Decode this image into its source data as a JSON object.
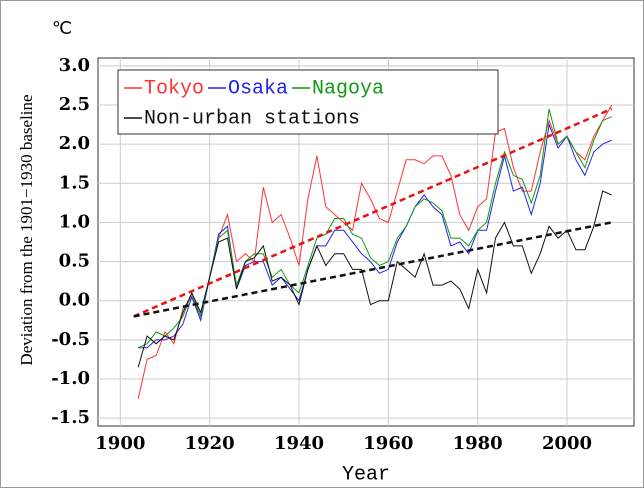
{
  "chart_data": {
    "type": "line",
    "unit_label": "℃",
    "y_label": "Deviation from the 1901−1930 baseline",
    "x_label": "Year",
    "xlim": [
      1895,
      2015
    ],
    "xticks": [
      1900,
      1920,
      1940,
      1960,
      1980,
      2000
    ],
    "ylim": [
      -1.6,
      3.1
    ],
    "yticks": [
      {
        "value": 3,
        "label": "3.0"
      },
      {
        "value": 2.5,
        "label": "2.5"
      },
      {
        "value": 2,
        "label": "2.0"
      },
      {
        "value": 1.5,
        "label": "1.5"
      },
      {
        "value": 1,
        "label": "1.0"
      },
      {
        "value": 0.5,
        "label": "0.5"
      },
      {
        "value": 0,
        "label": "0.0"
      },
      {
        "value": -0.5,
        "label": "-0.5"
      },
      {
        "value": -1,
        "label": "-1.0"
      },
      {
        "value": -1.5,
        "label": "-1.5"
      }
    ],
    "grid": true,
    "x": [
      1904,
      1906,
      1908,
      1910,
      1912,
      1914,
      1916,
      1918,
      1920,
      1922,
      1924,
      1926,
      1928,
      1930,
      1932,
      1934,
      1936,
      1938,
      1940,
      1942,
      1944,
      1946,
      1948,
      1950,
      1952,
      1954,
      1956,
      1958,
      1960,
      1962,
      1964,
      1966,
      1968,
      1970,
      1972,
      1974,
      1976,
      1978,
      1980,
      1982,
      1984,
      1986,
      1988,
      1990,
      1992,
      1994,
      1996,
      1998,
      2000,
      2002,
      2004,
      2006,
      2008,
      2010
    ],
    "series": [
      {
        "name": "Tokyo",
        "color": "#ff3333",
        "values": [
          -1.25,
          -0.75,
          -0.7,
          -0.4,
          -0.55,
          -0.1,
          0.05,
          -0.2,
          0.3,
          0.8,
          1.1,
          0.5,
          0.6,
          0.5,
          1.45,
          1.0,
          1.1,
          0.8,
          0.45,
          1.3,
          1.85,
          1.2,
          1.1,
          1.0,
          0.9,
          1.5,
          1.3,
          1.05,
          1.0,
          1.4,
          1.8,
          1.8,
          1.75,
          1.85,
          1.85,
          1.6,
          1.1,
          0.9,
          1.2,
          1.3,
          2.15,
          2.2,
          1.7,
          1.4,
          1.4,
          1.9,
          2.3,
          2.0,
          2.1,
          1.9,
          1.8,
          2.1,
          2.3,
          2.5
        ]
      },
      {
        "name": "Osaka",
        "color": "#2222ee",
        "values": [
          -0.6,
          -0.6,
          -0.5,
          -0.5,
          -0.45,
          -0.3,
          0.05,
          -0.25,
          0.3,
          0.85,
          0.95,
          0.15,
          0.45,
          0.5,
          0.5,
          0.2,
          0.3,
          0.15,
          0.0,
          0.4,
          0.7,
          0.7,
          0.9,
          0.9,
          0.75,
          0.6,
          0.5,
          0.35,
          0.4,
          0.75,
          0.95,
          1.2,
          1.35,
          1.2,
          1.1,
          0.7,
          0.75,
          0.6,
          0.9,
          0.9,
          1.4,
          1.85,
          1.4,
          1.45,
          1.1,
          1.5,
          2.25,
          1.95,
          2.1,
          1.8,
          1.6,
          1.9,
          2.0,
          2.05
        ]
      },
      {
        "name": "Nagoya",
        "color": "#119911",
        "values": [
          -0.6,
          -0.55,
          -0.4,
          -0.45,
          -0.35,
          -0.2,
          0.1,
          -0.2,
          0.3,
          0.8,
          0.9,
          0.2,
          0.5,
          0.6,
          0.6,
          0.3,
          0.4,
          0.2,
          0.1,
          0.45,
          0.8,
          0.85,
          1.05,
          1.05,
          0.85,
          0.8,
          0.55,
          0.45,
          0.5,
          0.8,
          0.95,
          1.2,
          1.3,
          1.25,
          1.15,
          0.8,
          0.8,
          0.7,
          0.9,
          1.0,
          1.5,
          1.9,
          1.6,
          1.55,
          1.25,
          1.6,
          2.45,
          2.0,
          2.1,
          1.9,
          1.7,
          2.05,
          2.3,
          2.35
        ]
      },
      {
        "name": "Non-urban stations",
        "color": "#111111",
        "values": [
          -0.85,
          -0.45,
          -0.55,
          -0.45,
          -0.5,
          -0.15,
          0.1,
          -0.15,
          0.3,
          0.75,
          0.8,
          0.15,
          0.5,
          0.55,
          0.7,
          0.25,
          0.3,
          0.2,
          -0.05,
          0.4,
          0.7,
          0.45,
          0.6,
          0.6,
          0.4,
          0.4,
          -0.05,
          0.0,
          0.0,
          0.5,
          0.4,
          0.3,
          0.6,
          0.2,
          0.2,
          0.25,
          0.15,
          -0.1,
          0.4,
          0.1,
          0.8,
          1.0,
          0.7,
          0.7,
          0.35,
          0.6,
          0.95,
          0.8,
          0.9,
          0.65,
          0.65,
          0.95,
          1.4,
          1.35
        ]
      }
    ],
    "trend_lines": [
      {
        "color": "#ee1111",
        "x": [
          1903,
          2010
        ],
        "values": [
          -0.2,
          2.45
        ]
      },
      {
        "color": "#111111",
        "x": [
          1903,
          2010
        ],
        "values": [
          -0.2,
          1.0
        ]
      }
    ]
  }
}
